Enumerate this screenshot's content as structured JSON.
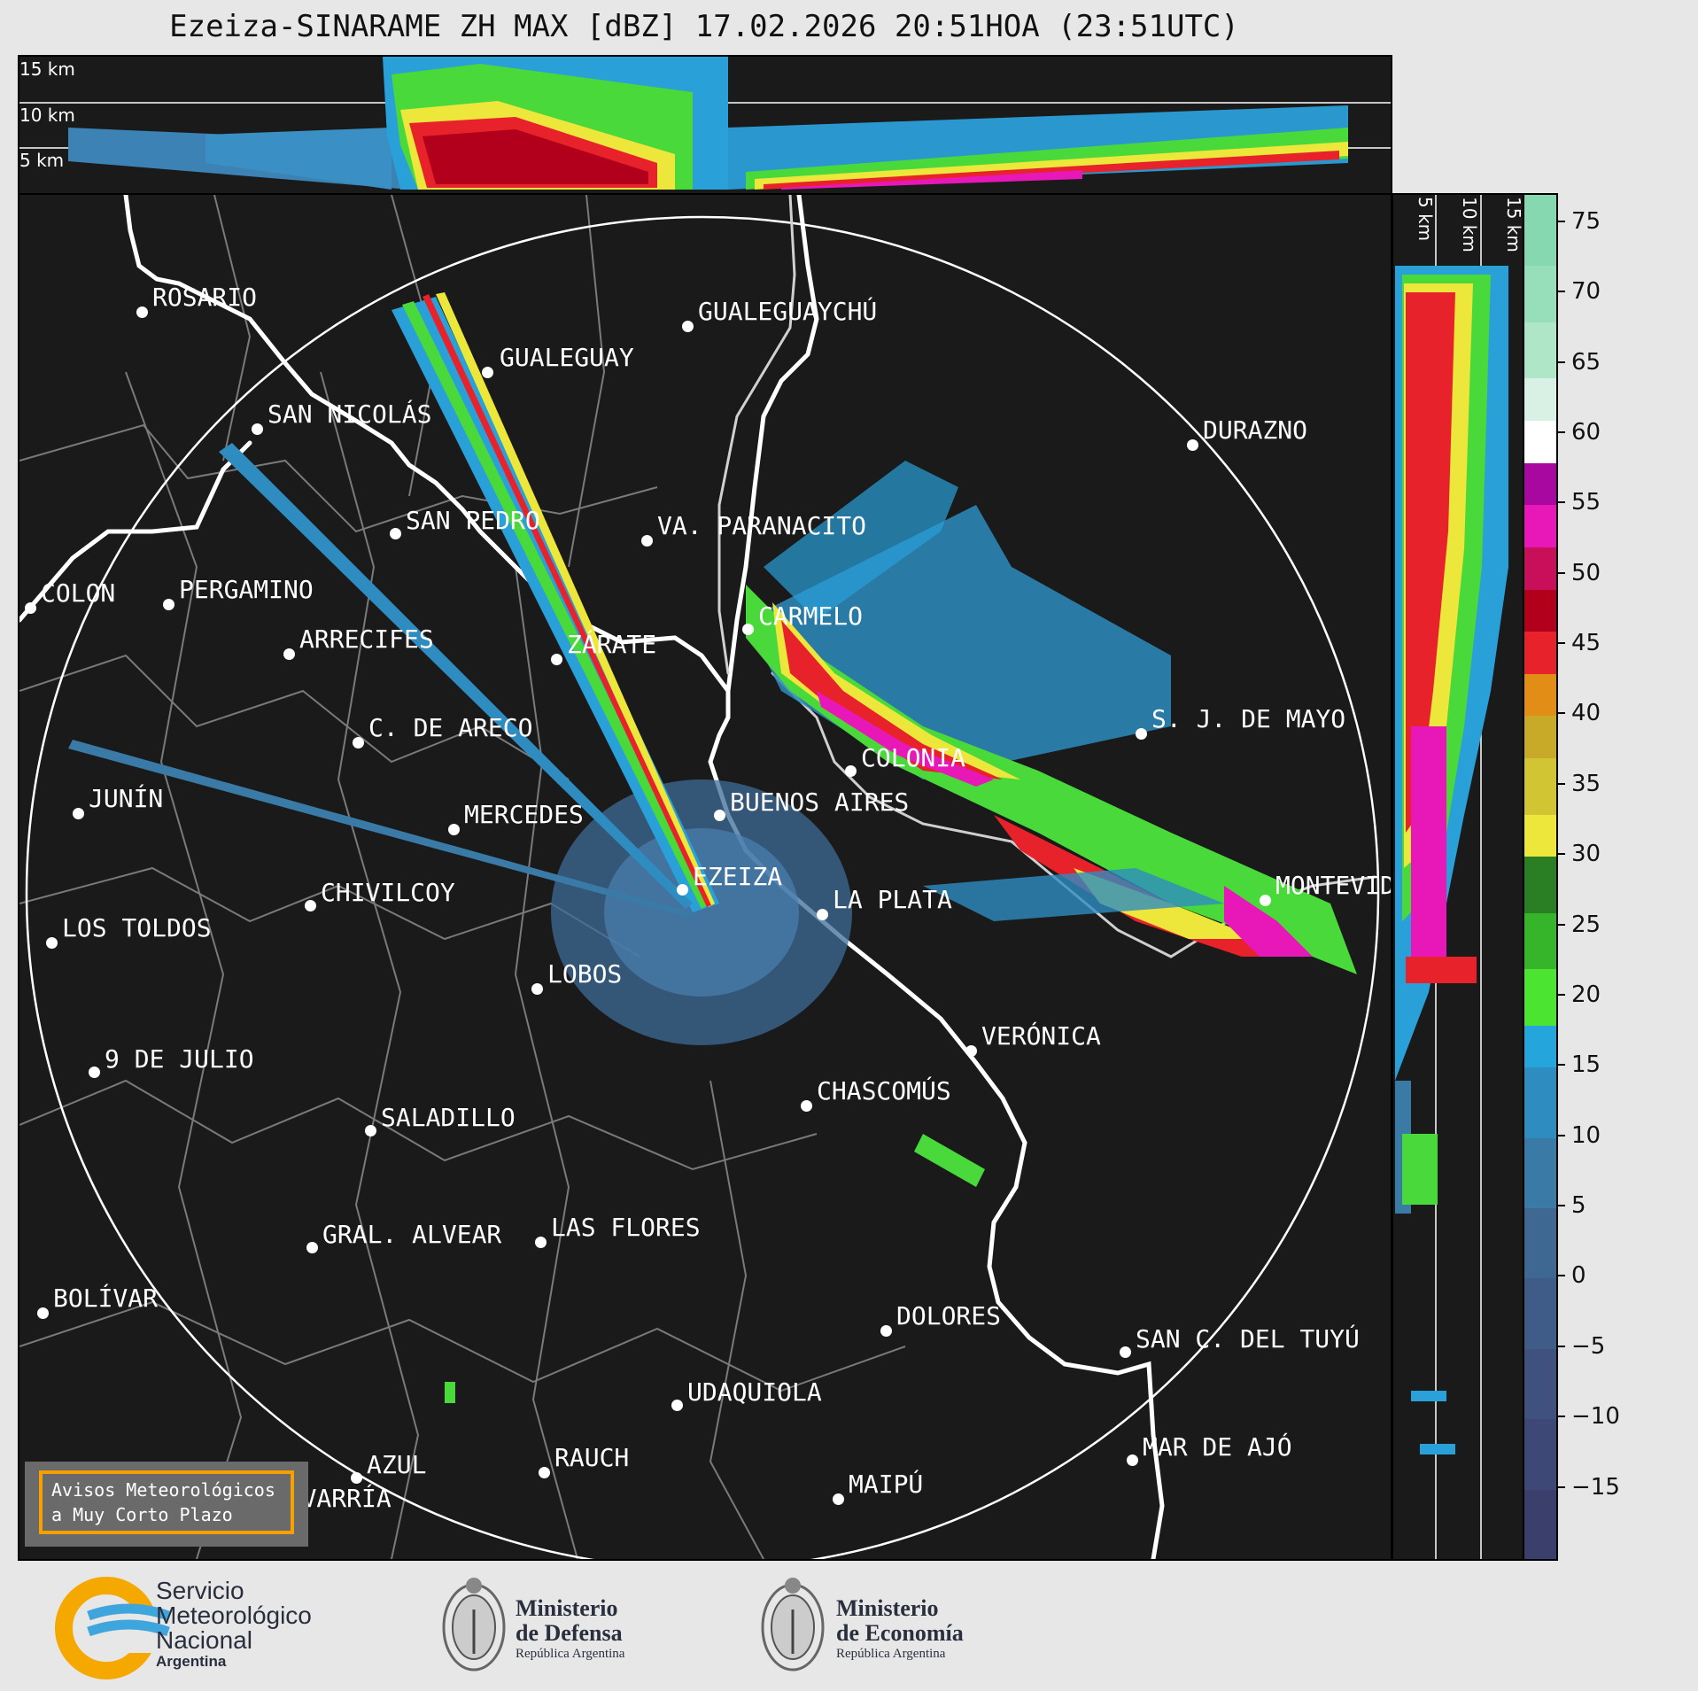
{
  "title": "Ezeiza-SINARAME ZH MAX [dBZ] 17.02.2026 20:51HOA (23:51UTC)",
  "height_labels_top": [
    "15 km",
    "10 km",
    "5 km"
  ],
  "height_labels_side": [
    "5 km",
    "10 km",
    "15 km"
  ],
  "cities": [
    {
      "name": "ROSARIO"
    },
    {
      "name": "GUALEGUAYCHÚ"
    },
    {
      "name": "GUALEGUAY"
    },
    {
      "name": "SAN NICOLÁS"
    },
    {
      "name": "DURAZNO"
    },
    {
      "name": "SAN PEDRO"
    },
    {
      "name": "VA. PARANACITO"
    },
    {
      "name": "COLON"
    },
    {
      "name": "PERGAMINO"
    },
    {
      "name": "CARMELO"
    },
    {
      "name": "ARRECIFES"
    },
    {
      "name": "ZÁRATE"
    },
    {
      "name": "S. J. DE MAYO"
    },
    {
      "name": "C. DE ARECO"
    },
    {
      "name": "COLONIA"
    },
    {
      "name": "JUNÍN"
    },
    {
      "name": "BUENOS AIRES"
    },
    {
      "name": "MERCEDES"
    },
    {
      "name": "EZEIZA"
    },
    {
      "name": "MONTEVIDEO"
    },
    {
      "name": "CHIVILCOY"
    },
    {
      "name": "LA PLATA"
    },
    {
      "name": "LOS TOLDOS"
    },
    {
      "name": "LOBOS"
    },
    {
      "name": "VERÓNICA"
    },
    {
      "name": "9 DE JULIO"
    },
    {
      "name": "CHASCOMÚS"
    },
    {
      "name": "SALADILLO"
    },
    {
      "name": "GRAL. ALVEAR"
    },
    {
      "name": "LAS FLORES"
    },
    {
      "name": "BOLÍVAR"
    },
    {
      "name": "DOLORES"
    },
    {
      "name": "SAN C. DEL TUYÚ"
    },
    {
      "name": "UDAQUIOLA"
    },
    {
      "name": "MAR DE AJÓ"
    },
    {
      "name": "RAUCH"
    },
    {
      "name": "AZUL"
    },
    {
      "name": "OLAVARRÍA"
    },
    {
      "name": "MAIPÚ"
    }
  ],
  "avisos_button": "Avisos Meteorológicos\na Muy Corto Plazo",
  "colorbar": {
    "min": -20,
    "max": 77,
    "ticks": [
      75,
      70,
      65,
      60,
      55,
      50,
      45,
      40,
      35,
      30,
      25,
      20,
      15,
      10,
      5,
      0,
      -5,
      -10,
      -15
    ],
    "tick_labels": [
      "75",
      "70",
      "65",
      "60",
      "55",
      "50",
      "45",
      "40",
      "35",
      "30",
      "25",
      "20",
      "15",
      "10",
      "5",
      "0",
      "−5",
      "−10",
      "−15"
    ],
    "bands": [
      {
        "from": -20,
        "to": -15,
        "color": "#3b3f6b"
      },
      {
        "from": -15,
        "to": -10,
        "color": "#3d4876"
      },
      {
        "from": -10,
        "to": -5,
        "color": "#3f527f"
      },
      {
        "from": -5,
        "to": 0,
        "color": "#3f5c88"
      },
      {
        "from": 0,
        "to": 5,
        "color": "#3e6892"
      },
      {
        "from": 5,
        "to": 10,
        "color": "#3a7aa6"
      },
      {
        "from": 10,
        "to": 15,
        "color": "#2e8cc0"
      },
      {
        "from": 15,
        "to": 18,
        "color": "#24a6dc"
      },
      {
        "from": 18,
        "to": 22,
        "color": "#4be431"
      },
      {
        "from": 22,
        "to": 26,
        "color": "#37b52a"
      },
      {
        "from": 26,
        "to": 30,
        "color": "#2a7f24"
      },
      {
        "from": 30,
        "to": 33,
        "color": "#ece73a"
      },
      {
        "from": 33,
        "to": 37,
        "color": "#d2c534"
      },
      {
        "from": 37,
        "to": 40,
        "color": "#c9a928"
      },
      {
        "from": 40,
        "to": 43,
        "color": "#e28e16"
      },
      {
        "from": 43,
        "to": 46,
        "color": "#e8222a"
      },
      {
        "from": 46,
        "to": 49,
        "color": "#b2001c"
      },
      {
        "from": 49,
        "to": 52,
        "color": "#c8105a"
      },
      {
        "from": 52,
        "to": 55,
        "color": "#e818b8"
      },
      {
        "from": 55,
        "to": 58,
        "color": "#a808a0"
      },
      {
        "from": 58,
        "to": 61,
        "color": "#ffffff"
      },
      {
        "from": 61,
        "to": 64,
        "color": "#d8f1e4"
      },
      {
        "from": 64,
        "to": 68,
        "color": "#b0e6c8"
      },
      {
        "from": 68,
        "to": 72,
        "color": "#97deba"
      },
      {
        "from": 72,
        "to": 77,
        "color": "#86d8b0"
      }
    ]
  },
  "logos": {
    "smn": {
      "line1": "Servicio",
      "line2": "Meteorológico",
      "line3": "Nacional",
      "line4": "Argentina"
    },
    "defensa": {
      "line1": "Ministerio",
      "line2": "de Defensa",
      "line3": "República Argentina"
    },
    "economia": {
      "line1": "Ministerio",
      "line2": "de Economía",
      "line3": "República Argentina"
    }
  },
  "colors": {
    "background": "#e7e7e7",
    "panel": "#1a1a1a",
    "avisos_border": "#f5a000",
    "smn_blue": "#3ea6dc",
    "smn_orange": "#f5a800"
  }
}
